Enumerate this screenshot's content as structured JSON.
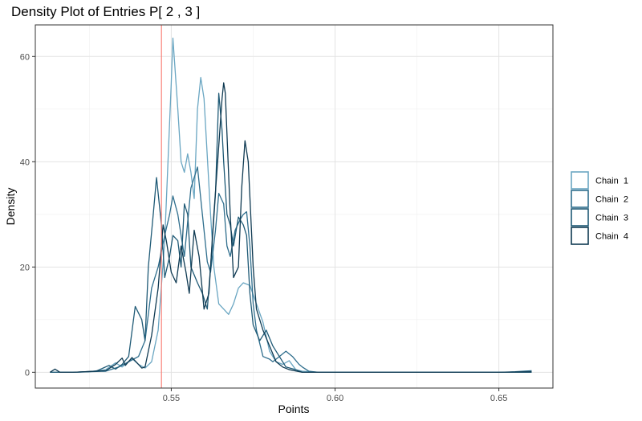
{
  "chart_data": {
    "type": "line",
    "title": "Density Plot of Entries P[ 2 , 3 ]",
    "xlabel": "Points",
    "ylabel": "Density",
    "xlim": [
      0.5085,
      0.6665
    ],
    "ylim": [
      -3,
      66
    ],
    "x_ticks": [
      0.55,
      0.6,
      0.65
    ],
    "x_tick_labels": [
      "0.55",
      "0.60",
      "0.65"
    ],
    "y_ticks": [
      0,
      20,
      40,
      60
    ],
    "y_tick_labels": [
      "0",
      "20",
      "40",
      "60"
    ],
    "grid": true,
    "legend_position": "right",
    "reference_line": {
      "x": 0.547,
      "color": "#f8766d"
    },
    "series": [
      {
        "name": "Chain  1",
        "color": "#6aa6c2",
        "points": [
          [
            0.513,
            0
          ],
          [
            0.52,
            0
          ],
          [
            0.525,
            0.1
          ],
          [
            0.53,
            0.5
          ],
          [
            0.533,
            1.8
          ],
          [
            0.535,
            1
          ],
          [
            0.538,
            2.6
          ],
          [
            0.54,
            1.5
          ],
          [
            0.542,
            0.8
          ],
          [
            0.544,
            2
          ],
          [
            0.546,
            8
          ],
          [
            0.548,
            25
          ],
          [
            0.55,
            55
          ],
          [
            0.5505,
            63.5
          ],
          [
            0.552,
            50
          ],
          [
            0.553,
            40
          ],
          [
            0.554,
            38
          ],
          [
            0.555,
            41.5
          ],
          [
            0.556,
            38
          ],
          [
            0.557,
            33
          ],
          [
            0.558,
            50
          ],
          [
            0.559,
            56
          ],
          [
            0.56,
            52
          ],
          [
            0.562,
            30
          ],
          [
            0.563,
            20
          ],
          [
            0.5645,
            13
          ],
          [
            0.566,
            12
          ],
          [
            0.5675,
            11
          ],
          [
            0.569,
            13
          ],
          [
            0.5705,
            16
          ],
          [
            0.572,
            17
          ],
          [
            0.574,
            16.5
          ],
          [
            0.576,
            13
          ],
          [
            0.578,
            9.5
          ],
          [
            0.58,
            4
          ],
          [
            0.582,
            2
          ],
          [
            0.584,
            1.5
          ],
          [
            0.586,
            2.2
          ],
          [
            0.588,
            0.5
          ],
          [
            0.59,
            0.2
          ],
          [
            0.595,
            0
          ],
          [
            0.6,
            0
          ],
          [
            0.65,
            0
          ],
          [
            0.66,
            0
          ]
        ]
      },
      {
        "name": "Chain  2",
        "color": "#2f6e8d",
        "points": [
          [
            0.513,
            0
          ],
          [
            0.52,
            0
          ],
          [
            0.53,
            0.2
          ],
          [
            0.534,
            1
          ],
          [
            0.537,
            2
          ],
          [
            0.54,
            3
          ],
          [
            0.542,
            6
          ],
          [
            0.544,
            16
          ],
          [
            0.546,
            20
          ],
          [
            0.548,
            26
          ],
          [
            0.5495,
            30
          ],
          [
            0.5505,
            33.5
          ],
          [
            0.552,
            30
          ],
          [
            0.553,
            26
          ],
          [
            0.554,
            22
          ],
          [
            0.556,
            35
          ],
          [
            0.558,
            39
          ],
          [
            0.5595,
            30
          ],
          [
            0.561,
            21
          ],
          [
            0.562,
            19
          ],
          [
            0.5635,
            27
          ],
          [
            0.5645,
            34
          ],
          [
            0.566,
            32
          ],
          [
            0.567,
            24
          ],
          [
            0.568,
            22
          ],
          [
            0.5695,
            27
          ],
          [
            0.571,
            29
          ],
          [
            0.572,
            30
          ],
          [
            0.573,
            30.5
          ],
          [
            0.574,
            24
          ],
          [
            0.575,
            13
          ],
          [
            0.576,
            8
          ],
          [
            0.578,
            3
          ],
          [
            0.58,
            2.5
          ],
          [
            0.581,
            2
          ],
          [
            0.583,
            3
          ],
          [
            0.585,
            4
          ],
          [
            0.587,
            3
          ],
          [
            0.589,
            1.5
          ],
          [
            0.59,
            1
          ],
          [
            0.592,
            0.2
          ],
          [
            0.595,
            0
          ],
          [
            0.6,
            0
          ],
          [
            0.65,
            0
          ],
          [
            0.655,
            0.1
          ],
          [
            0.66,
            0.3
          ]
        ]
      },
      {
        "name": "Chain  3",
        "color": "#1f5a76",
        "points": [
          [
            0.513,
            0
          ],
          [
            0.52,
            0
          ],
          [
            0.527,
            0.2
          ],
          [
            0.531,
            1.3
          ],
          [
            0.533,
            0.6
          ],
          [
            0.535,
            1.5
          ],
          [
            0.537,
            3
          ],
          [
            0.539,
            12.5
          ],
          [
            0.541,
            10
          ],
          [
            0.542,
            6
          ],
          [
            0.543,
            20
          ],
          [
            0.5445,
            30
          ],
          [
            0.5455,
            37
          ],
          [
            0.547,
            28
          ],
          [
            0.548,
            18
          ],
          [
            0.5495,
            22
          ],
          [
            0.5505,
            26
          ],
          [
            0.552,
            25
          ],
          [
            0.553,
            20
          ],
          [
            0.554,
            32
          ],
          [
            0.555,
            30
          ],
          [
            0.556,
            20
          ],
          [
            0.558,
            17
          ],
          [
            0.5595,
            15
          ],
          [
            0.561,
            12
          ],
          [
            0.562,
            20
          ],
          [
            0.5635,
            34
          ],
          [
            0.5645,
            53
          ],
          [
            0.5655,
            46
          ],
          [
            0.566,
            40
          ],
          [
            0.567,
            30
          ],
          [
            0.568,
            28
          ],
          [
            0.569,
            24
          ],
          [
            0.5705,
            29.5
          ],
          [
            0.572,
            28
          ],
          [
            0.573,
            26
          ],
          [
            0.574,
            15
          ],
          [
            0.575,
            9
          ],
          [
            0.577,
            6
          ],
          [
            0.579,
            8
          ],
          [
            0.581,
            5
          ],
          [
            0.583,
            3
          ],
          [
            0.585,
            1
          ],
          [
            0.588,
            0.5
          ],
          [
            0.59,
            0
          ],
          [
            0.6,
            0
          ],
          [
            0.65,
            0
          ],
          [
            0.66,
            0
          ]
        ]
      },
      {
        "name": "Chain  4",
        "color": "#0f3a52",
        "points": [
          [
            0.513,
            0
          ],
          [
            0.5145,
            0.6
          ],
          [
            0.516,
            0
          ],
          [
            0.52,
            0
          ],
          [
            0.53,
            0.3
          ],
          [
            0.533,
            1.5
          ],
          [
            0.535,
            2.7
          ],
          [
            0.536,
            1.3
          ],
          [
            0.538,
            2.8
          ],
          [
            0.54,
            1.5
          ],
          [
            0.541,
            0.8
          ],
          [
            0.542,
            1
          ],
          [
            0.544,
            7
          ],
          [
            0.546,
            16
          ],
          [
            0.5475,
            28
          ],
          [
            0.5485,
            25
          ],
          [
            0.55,
            19
          ],
          [
            0.5515,
            17
          ],
          [
            0.553,
            24
          ],
          [
            0.5545,
            19
          ],
          [
            0.5555,
            15
          ],
          [
            0.557,
            27
          ],
          [
            0.5585,
            22
          ],
          [
            0.56,
            12
          ],
          [
            0.5615,
            15
          ],
          [
            0.563,
            30
          ],
          [
            0.5645,
            43
          ],
          [
            0.5655,
            52
          ],
          [
            0.566,
            55
          ],
          [
            0.5665,
            53
          ],
          [
            0.568,
            30
          ],
          [
            0.569,
            18
          ],
          [
            0.5705,
            20
          ],
          [
            0.5715,
            35
          ],
          [
            0.5725,
            44
          ],
          [
            0.5735,
            40
          ],
          [
            0.575,
            20
          ],
          [
            0.576,
            12
          ],
          [
            0.577,
            10
          ],
          [
            0.578,
            8
          ],
          [
            0.58,
            5
          ],
          [
            0.582,
            2
          ],
          [
            0.584,
            1
          ],
          [
            0.586,
            0.5
          ],
          [
            0.59,
            0
          ],
          [
            0.6,
            0
          ],
          [
            0.65,
            0
          ],
          [
            0.66,
            0.1
          ]
        ]
      }
    ]
  }
}
